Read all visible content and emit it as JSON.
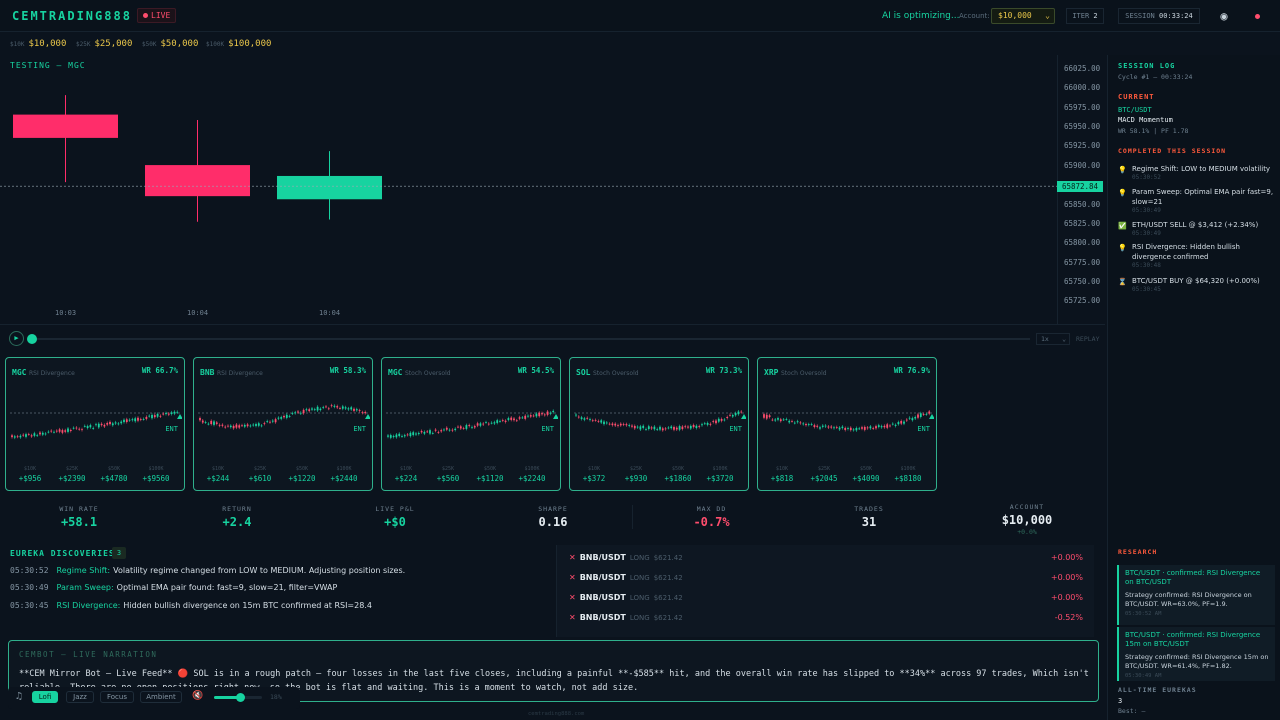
{
  "header": {
    "logo": "CEMTRADING888",
    "live_badge": "LIVE",
    "ai_status": "AI is optimizing...",
    "account_label": "Account:",
    "account_value": "$10,000",
    "iter_label": "ITER",
    "iter_value": "2",
    "session_label": "SESSION",
    "session_value": "00:33:24"
  },
  "tiers": [
    {
      "small": "$10K",
      "value": "$10,000"
    },
    {
      "small": "$25K",
      "value": "$25,000"
    },
    {
      "small": "$50K",
      "value": "$50,000"
    },
    {
      "small": "$100K",
      "value": "$100,000"
    }
  ],
  "main_chart": {
    "title": "TESTING — MGC",
    "current_price": "65872.84",
    "price_labels": [
      "66025.00",
      "66000.00",
      "65975.00",
      "65950.00",
      "65925.00",
      "65900.00",
      "65850.00",
      "65825.00",
      "65800.00",
      "65775.00",
      "65750.00",
      "65725.00"
    ],
    "time_labels": [
      "10:03",
      "10:04",
      "10:04"
    ],
    "scrub_progress": 0.0,
    "speed": "1x",
    "replay": "REPLAY"
  },
  "chart_data": {
    "type": "candlestick",
    "title": "TESTING — MGC",
    "x": [
      "10:03",
      "10:04",
      "10:04"
    ],
    "candles": [
      {
        "open": 65965,
        "close": 65935,
        "high": 65990,
        "low": 65878,
        "direction": "down"
      },
      {
        "open": 65900,
        "close": 65860,
        "high": 65958,
        "low": 65827,
        "direction": "down"
      },
      {
        "open": 65856,
        "close": 65886,
        "high": 65918,
        "low": 65830,
        "direction": "up"
      }
    ],
    "current_price": 65872.84,
    "ylim": [
      65725,
      66025
    ],
    "colors": {
      "up": "#17d3a0",
      "down": "#ff2d6a"
    }
  },
  "strategy_cards": [
    {
      "symbol": "MGC",
      "strategy": "RSI Divergence",
      "wr": "WR 66.7%",
      "ent": "ENT",
      "trend": "up",
      "pnl": [
        {
          "tier": "$10K",
          "value": "+$956"
        },
        {
          "tier": "$25K",
          "value": "+$2390"
        },
        {
          "tier": "$50K",
          "value": "+$4780"
        },
        {
          "tier": "$100K",
          "value": "+$9560"
        }
      ]
    },
    {
      "symbol": "BNB",
      "strategy": "RSI Divergence",
      "wr": "WR 58.3%",
      "ent": "ENT",
      "trend": "flat",
      "pnl": [
        {
          "tier": "$10K",
          "value": "+$244"
        },
        {
          "tier": "$25K",
          "value": "+$610"
        },
        {
          "tier": "$50K",
          "value": "+$1220"
        },
        {
          "tier": "$100K",
          "value": "+$2440"
        }
      ]
    },
    {
      "symbol": "MGC",
      "strategy": "Stoch Oversold",
      "wr": "WR 54.5%",
      "ent": "ENT",
      "trend": "up",
      "pnl": [
        {
          "tier": "$10K",
          "value": "+$224"
        },
        {
          "tier": "$25K",
          "value": "+$560"
        },
        {
          "tier": "$50K",
          "value": "+$1120"
        },
        {
          "tier": "$100K",
          "value": "+$2240"
        }
      ]
    },
    {
      "symbol": "SOL",
      "strategy": "Stoch Oversold",
      "wr": "WR 73.3%",
      "ent": "ENT",
      "trend": "down",
      "pnl": [
        {
          "tier": "$10K",
          "value": "+$372"
        },
        {
          "tier": "$25K",
          "value": "+$930"
        },
        {
          "tier": "$50K",
          "value": "+$1860"
        },
        {
          "tier": "$100K",
          "value": "+$3720"
        }
      ]
    },
    {
      "symbol": "XRP",
      "strategy": "Stoch Oversold",
      "wr": "WR 76.9%",
      "ent": "ENT",
      "trend": "down",
      "pnl": [
        {
          "tier": "$10K",
          "value": "+$818"
        },
        {
          "tier": "$25K",
          "value": "+$2045"
        },
        {
          "tier": "$50K",
          "value": "+$4090"
        },
        {
          "tier": "$100K",
          "value": "+$8180"
        }
      ]
    }
  ],
  "stats": [
    {
      "label": "WIN RATE",
      "value": "+58.1",
      "tone": "green"
    },
    {
      "label": "RETURN",
      "value": "+2.4",
      "tone": "green"
    },
    {
      "label": "LIVE P&L",
      "value": "+$0",
      "tone": "green"
    },
    {
      "label": "SHARPE",
      "value": "0.16",
      "tone": "white"
    },
    {
      "label": "MAX DD",
      "value": "-0.7%",
      "tone": "red"
    },
    {
      "label": "TRADES",
      "value": "31",
      "tone": "white"
    },
    {
      "label": "ACCOUNT",
      "value": "$10,000",
      "tone": "white",
      "sub": "+0.0%"
    }
  ],
  "eureka": {
    "title": "EUREKA DISCOVERIES",
    "count": "3",
    "items": [
      {
        "time": "05:30:52",
        "kind": "Regime Shift:",
        "text": "Volatility regime changed from LOW to MEDIUM. Adjusting position sizes."
      },
      {
        "time": "05:30:49",
        "kind": "Param Sweep:",
        "text": "Optimal EMA pair found: fast=9, slow=21, filter=VWAP"
      },
      {
        "time": "05:30:45",
        "kind": "RSI Divergence:",
        "text": "Hidden bullish divergence on 15m BTC confirmed at RSI=28.4"
      }
    ]
  },
  "trades": [
    {
      "pair": "BNB/USDT",
      "side": "LONG",
      "price": "$621.42",
      "pct": "+0.00%",
      "tone": "red"
    },
    {
      "pair": "BNB/USDT",
      "side": "LONG",
      "price": "$621.42",
      "pct": "+0.00%",
      "tone": "red"
    },
    {
      "pair": "BNB/USDT",
      "side": "LONG",
      "price": "$621.42",
      "pct": "+0.00%",
      "tone": "red"
    },
    {
      "pair": "BNB/USDT",
      "side": "LONG",
      "price": "$621.42",
      "pct": "-0.52%",
      "tone": "red"
    }
  ],
  "narration": {
    "title": "CEMBOT — LIVE NARRATION",
    "text": "**CEM Mirror Bot — Live Feed** 🔴 SOL is in a rough patch — four losses in the last five closes, including a painful **-$585** hit, and the overall win rate has slipped to **34%** across 97 trades, Which isn't reliable. There are no open positions right now, so the bot is flat and waiting. This is a moment to watch, not add size."
  },
  "music": {
    "buttons": [
      "Lofi",
      "Jazz",
      "Focus",
      "Ambient"
    ],
    "active": "Lofi",
    "volume": "18%",
    "volume_level": 0.55
  },
  "footer": "cemtrading888.com",
  "sidebar": {
    "session_title": "SESSION LOG",
    "cycle": "Cycle #1 — 00:33:24",
    "current_title": "CURRENT",
    "current_pair": "BTC/USDT",
    "current_strategy": "MACD Momentum",
    "current_stats": "WR 58.1% | PF 1.78",
    "completed_title": "COMPLETED THIS SESSION",
    "completed": [
      {
        "icon": "lightbulb-icon",
        "glyph": "💡",
        "text": "Regime Shift: LOW to MEDIUM volatility",
        "time": "05:30:52"
      },
      {
        "icon": "lightbulb-icon",
        "glyph": "💡",
        "text": "Param Sweep: Optimal EMA pair fast=9, slow=21",
        "time": "05:30:49"
      },
      {
        "icon": "check-icon",
        "glyph": "✅",
        "text": "ETH/USDT SELL @ $3,412 (+2.34%)",
        "time": "05:30:49"
      },
      {
        "icon": "lightbulb-icon",
        "glyph": "💡",
        "text": "RSI Divergence: Hidden bullish divergence confirmed",
        "time": "05:30:48"
      },
      {
        "icon": "hourglass-icon",
        "glyph": "⌛",
        "text": "BTC/USDT BUY @ $64,320 (+0.00%)",
        "time": "05:30:45"
      }
    ],
    "research_title": "RESEARCH",
    "research": [
      {
        "title": "BTC/USDT · confirmed: RSI Divergence on BTC/USDT",
        "body": "Strategy confirmed: RSI Divergence on BTC/USDT. WR=63.0%, PF=1.9.",
        "time": "05:30:52 AM"
      },
      {
        "title": "BTC/USDT · confirmed: RSI Divergence 15m on BTC/USDT",
        "body": "Strategy confirmed: RSI Divergence 15m on BTC/USDT. WR=61.4%, PF=1.82.",
        "time": "05:30:49 AM"
      }
    ],
    "alltime_title": "ALL-TIME EUREKAS",
    "alltime_value": "3",
    "best": "Best: —"
  }
}
